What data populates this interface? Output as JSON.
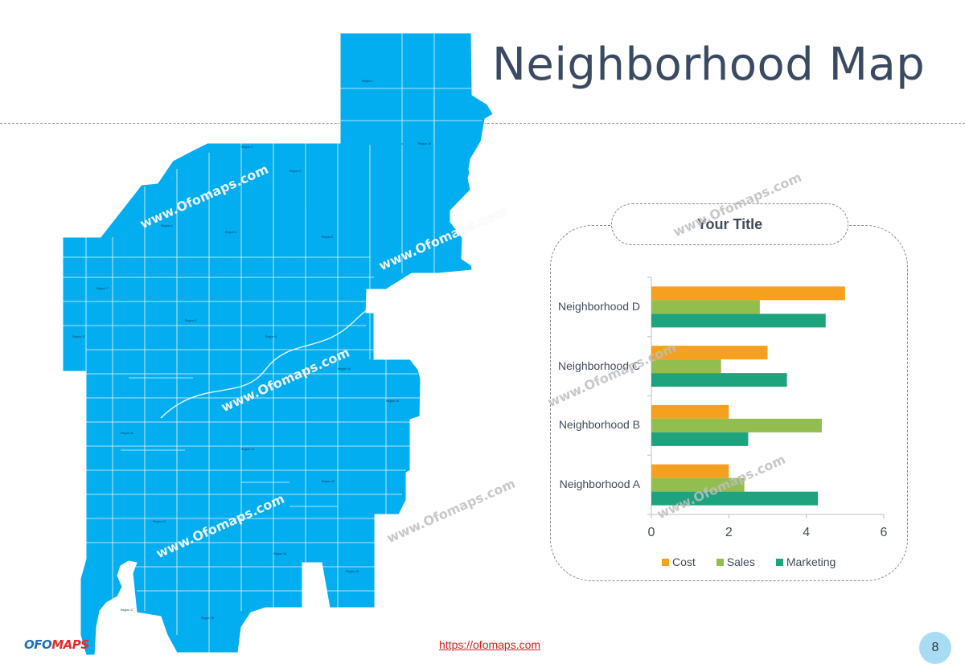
{
  "slide": {
    "title": "Neighborhood Map",
    "link_text": "https://ofomaps.com",
    "page_number": "8",
    "logo_a": "OFO",
    "logo_b": "MAPS",
    "watermark_text": "www.Ofomaps.com"
  },
  "colors": {
    "map_fill": "#02aef0",
    "title": "#3b4a63",
    "cost": "#f5a11f",
    "sales": "#92bd4f",
    "marketing": "#1ea37f",
    "page_badge": "#a8dcf3",
    "link": "#e02020"
  },
  "chart_data": {
    "type": "bar",
    "orientation": "horizontal",
    "title": "Your Title",
    "categories": [
      "Neighborhood A",
      "Neighborhood B",
      "Neighborhood C",
      "Neighborhood D"
    ],
    "series": [
      {
        "name": "Cost",
        "values": [
          2,
          2,
          3,
          5
        ]
      },
      {
        "name": "Sales",
        "values": [
          2.4,
          4.4,
          1.8,
          2.8
        ]
      },
      {
        "name": "Marketing",
        "values": [
          4.3,
          2.5,
          3.5,
          4.5
        ]
      }
    ],
    "xlim": [
      0,
      6
    ],
    "xticks": [
      0,
      2,
      4,
      6
    ],
    "grid": false,
    "legend_position": "bottom"
  }
}
